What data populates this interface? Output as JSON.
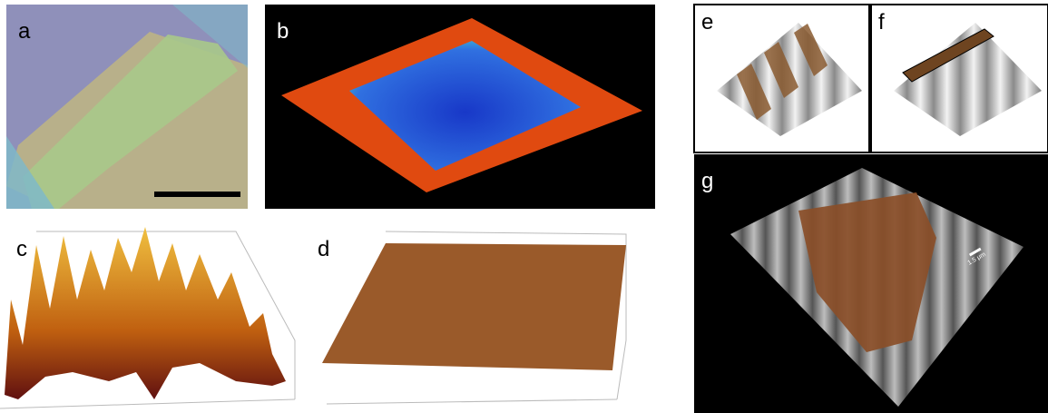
{
  "panels": [
    {
      "label": "a"
    },
    {
      "label": "b"
    },
    {
      "label": "c"
    },
    {
      "label": "d"
    },
    {
      "label": "e"
    },
    {
      "label": "f"
    },
    {
      "label": "g"
    }
  ],
  "scale_label": "1.5 μm"
}
